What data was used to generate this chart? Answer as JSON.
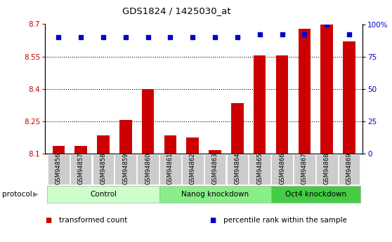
{
  "title": "GDS1824 / 1425030_at",
  "samples": [
    "GSM94856",
    "GSM94857",
    "GSM94858",
    "GSM94859",
    "GSM94860",
    "GSM94861",
    "GSM94862",
    "GSM94863",
    "GSM94864",
    "GSM94865",
    "GSM94866",
    "GSM94867",
    "GSM94868",
    "GSM94869"
  ],
  "bar_values": [
    8.135,
    8.135,
    8.185,
    8.255,
    8.4,
    8.185,
    8.175,
    8.115,
    8.335,
    8.555,
    8.555,
    8.68,
    8.7,
    8.62
  ],
  "percentile_values": [
    90,
    90,
    90,
    90,
    90,
    90,
    90,
    90,
    90,
    92,
    92,
    92,
    100,
    92
  ],
  "bar_color": "#cc0000",
  "percentile_color": "#0000cc",
  "ylim_left": [
    8.1,
    8.7
  ],
  "ylim_right": [
    0,
    100
  ],
  "yticks_left": [
    8.1,
    8.25,
    8.4,
    8.55,
    8.7
  ],
  "yticks_right": [
    0,
    25,
    50,
    75,
    100
  ],
  "ytick_labels_left": [
    "8.1",
    "8.25",
    "8.4",
    "8.55",
    "8.7"
  ],
  "ytick_labels_right": [
    "0",
    "25",
    "50",
    "75",
    "100%"
  ],
  "grid_values": [
    8.25,
    8.4,
    8.55
  ],
  "groups": [
    {
      "label": "Control",
      "start": 0,
      "end": 5,
      "color": "#ccffcc"
    },
    {
      "label": "Nanog knockdown",
      "start": 5,
      "end": 10,
      "color": "#88ee88"
    },
    {
      "label": "Oct4 knockdown",
      "start": 10,
      "end": 14,
      "color": "#44cc44"
    }
  ],
  "group_row_label": "protocol",
  "legend": [
    {
      "label": "transformed count",
      "color": "#cc0000"
    },
    {
      "label": "percentile rank within the sample",
      "color": "#0000cc"
    }
  ],
  "plot_bg": "#ffffff",
  "tick_label_bg": "#cccccc",
  "bar_width": 0.55
}
